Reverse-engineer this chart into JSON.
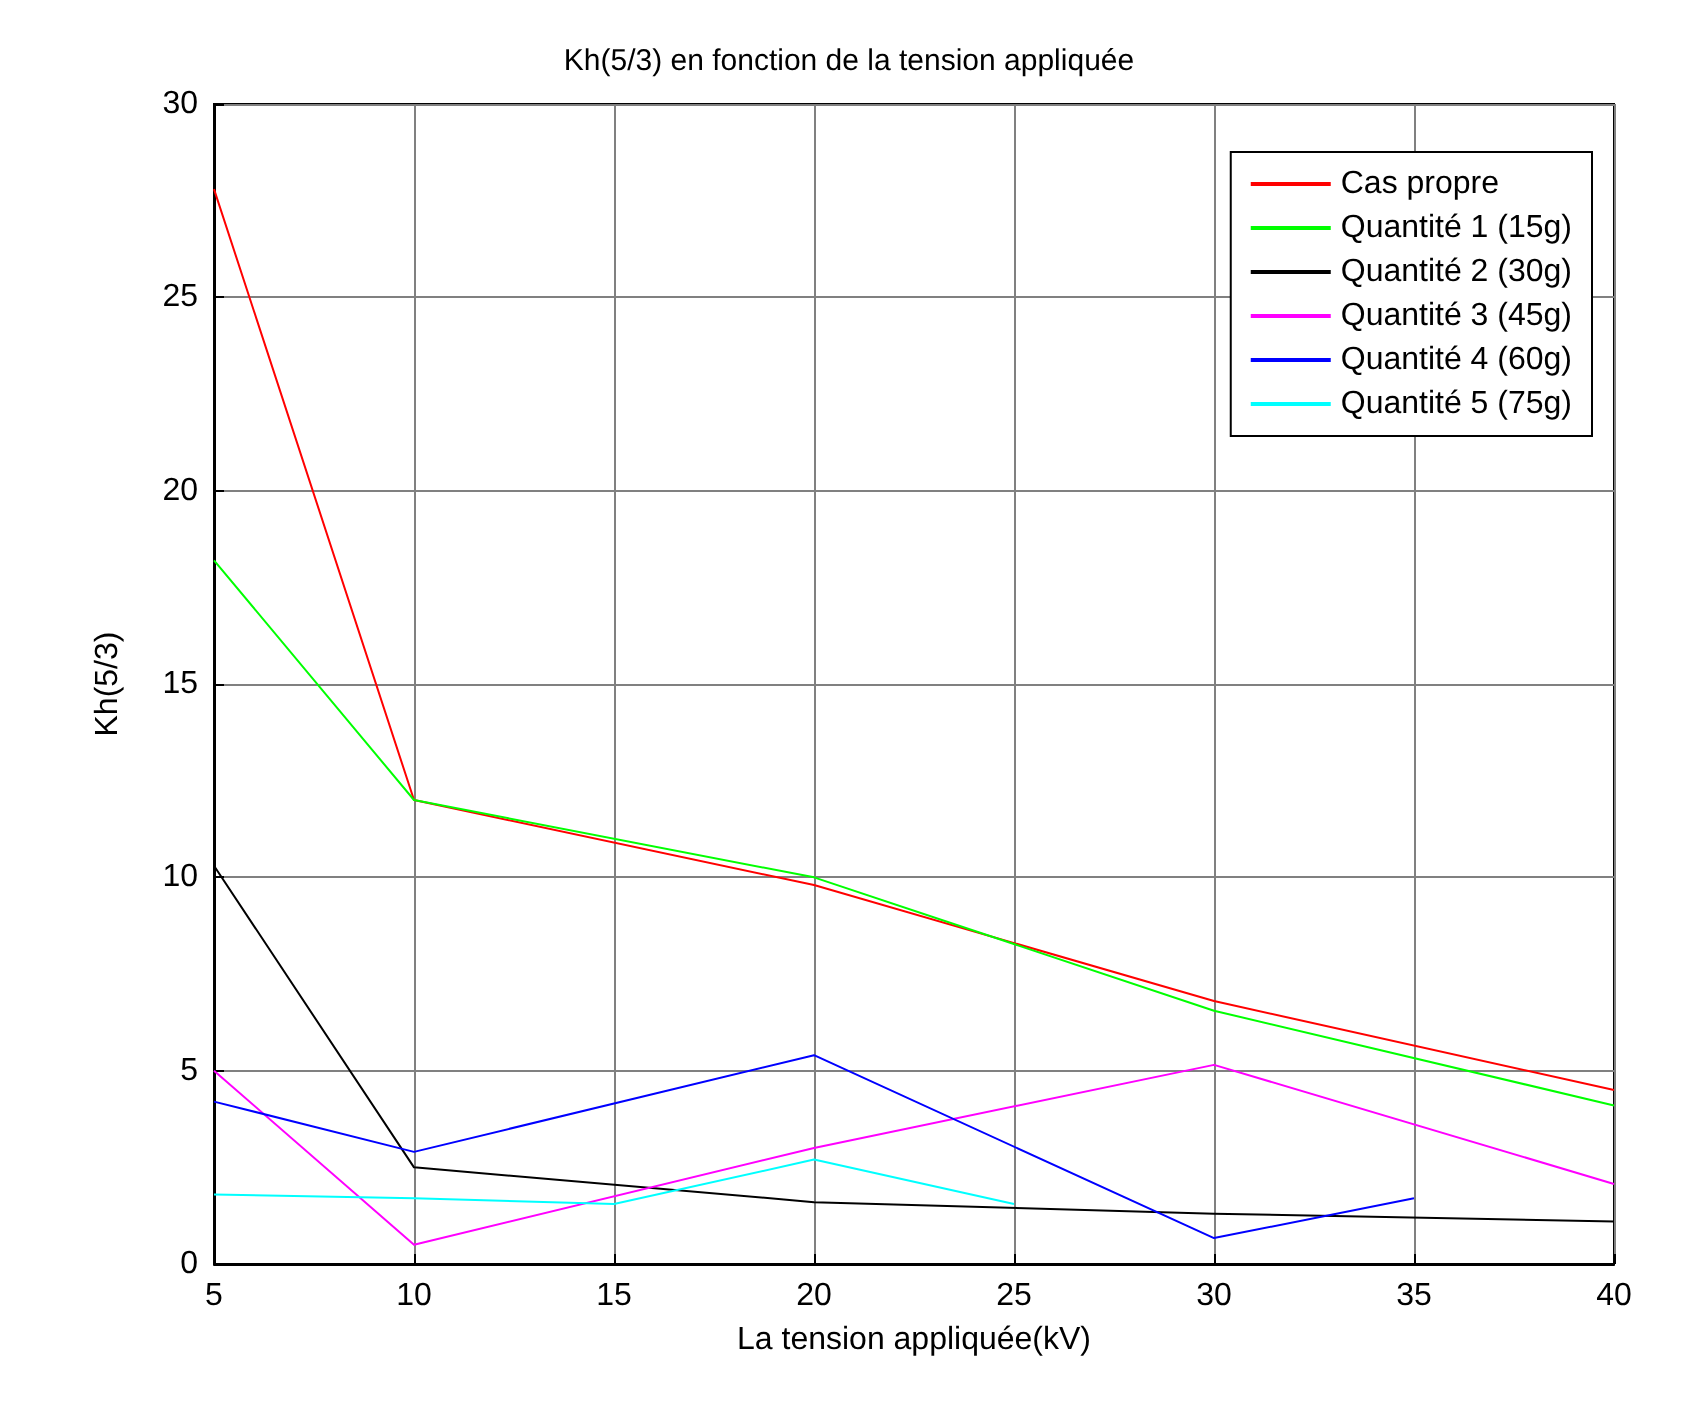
{
  "chart_data": {
    "type": "line",
    "title": "Kh(5/3) en fonction de la tension appliquée",
    "xlabel": "La tension appliquée(kV)",
    "ylabel": "Kh(5/3)",
    "xlim": [
      5,
      40
    ],
    "xticks": [
      5,
      10,
      15,
      20,
      25,
      30,
      35,
      40
    ],
    "ylim": [
      0,
      30
    ],
    "yticks": [
      0,
      5,
      10,
      15,
      20,
      25,
      30
    ],
    "grid": true,
    "legend": "top right",
    "marker": "none",
    "line_style": "solid",
    "series": [
      {
        "name": "Cas propre",
        "color": "#ff0000",
        "x": [
          5,
          10,
          20,
          30,
          40
        ],
        "values": [
          27.8,
          12,
          9.8,
          6.8,
          4.5
        ]
      },
      {
        "name": "Quantité 1 (15g)",
        "color": "#00ff00",
        "x": [
          5,
          10,
          20,
          30,
          40
        ],
        "values": [
          18.2,
          12,
          10,
          6.55,
          4.1
        ]
      },
      {
        "name": "Quantité 2 (30g)",
        "color": "#000000",
        "x": [
          5,
          10,
          20,
          30,
          40
        ],
        "values": [
          10.3,
          2.5,
          1.6,
          1.3,
          1.1
        ]
      },
      {
        "name": "Quantité 3 (45g)",
        "color": "#ff00ff",
        "x": [
          5,
          10,
          20,
          30,
          40
        ],
        "values": [
          5,
          0.5,
          3,
          5.15,
          2.07
        ]
      },
      {
        "name": "Quantité 4 (60g)",
        "color": "#0000ff",
        "x": [
          5,
          10,
          20,
          30,
          35
        ],
        "values": [
          4.2,
          2.9,
          5.4,
          0.67,
          1.7
        ]
      },
      {
        "name": "Quantité 5 (75g)",
        "color": "#00ffff",
        "x": [
          5,
          10,
          15,
          20,
          25
        ],
        "values": [
          1.8,
          1.7,
          1.55,
          2.7,
          1.55
        ]
      }
    ]
  }
}
